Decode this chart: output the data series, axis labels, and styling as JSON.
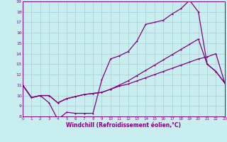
{
  "xlabel": "Windchill (Refroidissement éolien,°C)",
  "background_color": "#c8eef0",
  "line_color": "#800080",
  "grid_color": "#b0c8d0",
  "x_min": 0,
  "x_max": 23,
  "y_min": 8,
  "y_max": 19,
  "x_ticks": [
    0,
    1,
    2,
    3,
    4,
    5,
    6,
    7,
    8,
    9,
    10,
    11,
    12,
    13,
    14,
    15,
    16,
    17,
    18,
    19,
    20,
    21,
    22,
    23
  ],
  "y_ticks": [
    8,
    9,
    10,
    11,
    12,
    13,
    14,
    15,
    16,
    17,
    18,
    19
  ],
  "line1_x": [
    0,
    1,
    2,
    3,
    4,
    5,
    6,
    7,
    8,
    9,
    10,
    11,
    12,
    13,
    14,
    15,
    16,
    17,
    18,
    19,
    20,
    21,
    22,
    23
  ],
  "line1_y": [
    11.0,
    9.8,
    10.0,
    9.3,
    7.7,
    8.4,
    8.3,
    8.3,
    8.3,
    11.5,
    13.5,
    13.8,
    14.2,
    15.2,
    16.8,
    17.0,
    17.2,
    17.8,
    18.3,
    19.1,
    18.0,
    13.0,
    12.3,
    11.2
  ],
  "line2_x": [
    0,
    1,
    2,
    3,
    4,
    5,
    6,
    7,
    8,
    9,
    10,
    11,
    12,
    13,
    14,
    15,
    16,
    17,
    18,
    19,
    20,
    21,
    22,
    23
  ],
  "line2_y": [
    11.0,
    9.8,
    10.0,
    10.0,
    9.3,
    9.7,
    9.9,
    10.1,
    10.2,
    10.3,
    10.6,
    11.0,
    11.4,
    11.9,
    12.4,
    12.9,
    13.4,
    13.9,
    14.4,
    14.9,
    15.4,
    13.0,
    12.3,
    11.2
  ],
  "line3_x": [
    0,
    1,
    2,
    3,
    4,
    5,
    6,
    7,
    8,
    9,
    10,
    11,
    12,
    13,
    14,
    15,
    16,
    17,
    18,
    19,
    20,
    21,
    22,
    23
  ],
  "line3_y": [
    11.0,
    9.8,
    10.0,
    10.0,
    9.3,
    9.7,
    9.9,
    10.1,
    10.2,
    10.3,
    10.6,
    10.9,
    11.1,
    11.4,
    11.7,
    12.0,
    12.3,
    12.6,
    12.9,
    13.2,
    13.5,
    13.7,
    14.0,
    11.2
  ]
}
